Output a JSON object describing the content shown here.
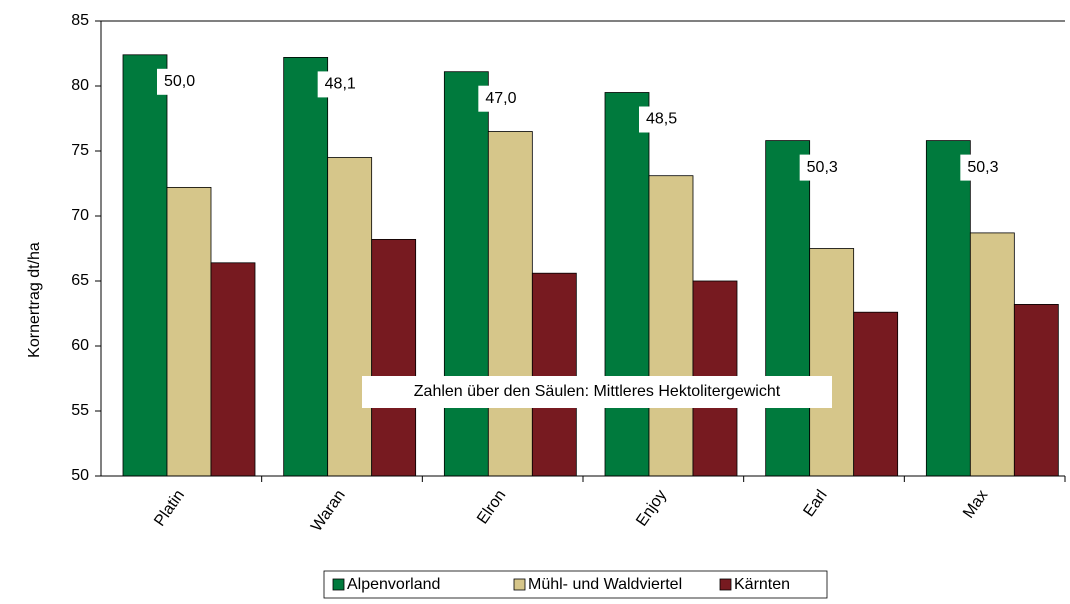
{
  "chart_data": {
    "type": "bar",
    "y_label": "Kornertrag dt/ha",
    "categories": [
      "Platin",
      "Waran",
      "Elron",
      "Enjoy",
      "Earl",
      "Max"
    ],
    "series": [
      {
        "name": "Alpenvorland",
        "color": "#007a3d",
        "values": [
          82.4,
          82.2,
          81.1,
          79.5,
          75.8,
          75.8
        ]
      },
      {
        "name": "Mühl- und Waldviertel",
        "color": "#d6c68a",
        "values": [
          72.2,
          74.5,
          76.5,
          73.1,
          67.5,
          68.7
        ]
      },
      {
        "name": "Kärnten",
        "color": "#771a20",
        "values": [
          66.4,
          68.2,
          65.6,
          65.0,
          62.6,
          63.2
        ]
      }
    ],
    "annotations": [
      "50,0",
      "48,1",
      "47,0",
      "48,5",
      "50,3",
      "50,3"
    ],
    "note": "Zahlen über den Säulen: Mittleres Hektolitergewicht",
    "ylim": [
      50,
      85
    ],
    "yticks": [
      50,
      55,
      60,
      65,
      70,
      75,
      80,
      85
    ],
    "grid": false
  }
}
